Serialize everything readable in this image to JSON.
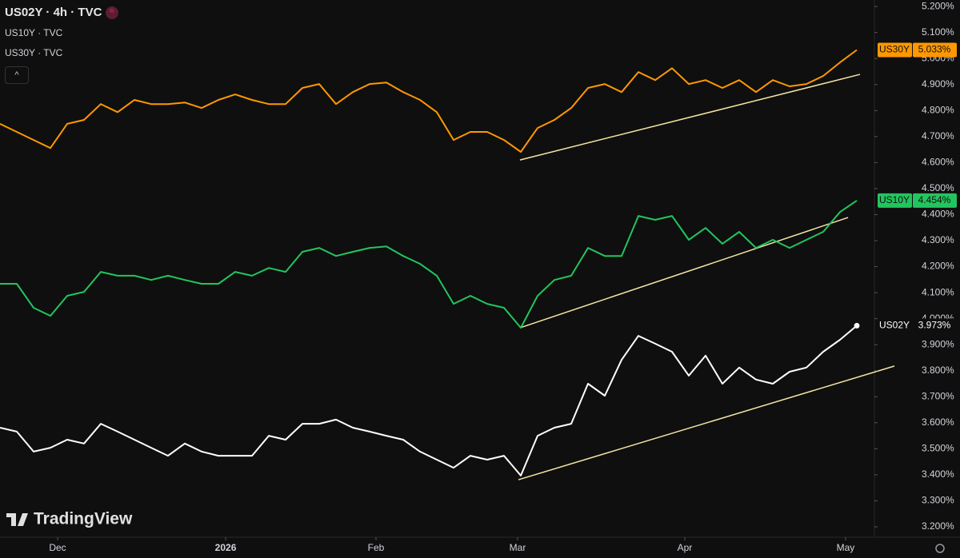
{
  "chart_data": {
    "type": "line",
    "header": {
      "main": "US02Y · 4h · TVC",
      "second": "US10Y · TVC",
      "third": "US30Y · TVC"
    },
    "brand": "TradingView",
    "xlim": [
      0,
      52
    ],
    "ylim": [
      3.16,
      5.225
    ],
    "xticks": [
      {
        "value": 3.43,
        "label": "Dec"
      },
      {
        "value": 13.43,
        "label": "2026"
      },
      {
        "value": 22.38,
        "label": "Feb"
      },
      {
        "value": 30.81,
        "label": "Mar"
      },
      {
        "value": 40.76,
        "label": "Apr"
      },
      {
        "value": 50.33,
        "label": "May"
      }
    ],
    "yticks": [
      {
        "value": 3.2,
        "label": "3.200%"
      },
      {
        "value": 3.3,
        "label": "3.300%"
      },
      {
        "value": 3.4,
        "label": "3.400%"
      },
      {
        "value": 3.5,
        "label": "3.500%"
      },
      {
        "value": 3.6,
        "label": "3.600%"
      },
      {
        "value": 3.7,
        "label": "3.700%"
      },
      {
        "value": 3.8,
        "label": "3.800%"
      },
      {
        "value": 3.9,
        "label": "3.900%"
      },
      {
        "value": 4.0,
        "label": "4.000%"
      },
      {
        "value": 4.1,
        "label": "4.100%"
      },
      {
        "value": 4.2,
        "label": "4.200%"
      },
      {
        "value": 4.3,
        "label": "4.300%"
      },
      {
        "value": 4.4,
        "label": "4.400%"
      },
      {
        "value": 4.5,
        "label": "4.500%"
      },
      {
        "value": 4.6,
        "label": "4.600%"
      },
      {
        "value": 4.7,
        "label": "4.700%"
      },
      {
        "value": 4.8,
        "label": "4.800%"
      },
      {
        "value": 4.9,
        "label": "4.900%"
      },
      {
        "value": 5.0,
        "label": "5.000%"
      },
      {
        "value": 5.1,
        "label": "5.100%"
      },
      {
        "value": 5.2,
        "label": "5.200%"
      }
    ],
    "series": [
      {
        "name": "US30Y",
        "color": "#ff9800",
        "last": {
          "value": 5.033,
          "label": "5.033%"
        },
        "values": [
          4.749,
          4.718,
          4.687,
          4.656,
          4.749,
          4.764,
          4.825,
          4.794,
          4.841,
          4.825,
          4.825,
          4.831,
          4.81,
          4.841,
          4.862,
          4.841,
          4.825,
          4.825,
          4.887,
          4.902,
          4.825,
          4.871,
          4.902,
          4.908,
          4.871,
          4.841,
          4.794,
          4.687,
          4.718,
          4.718,
          4.687,
          4.641,
          4.733,
          4.764,
          4.81,
          4.887,
          4.902,
          4.871,
          4.948,
          4.917,
          4.963,
          4.902,
          4.917,
          4.887,
          4.917,
          4.871,
          4.917,
          4.893,
          4.902,
          4.933,
          4.985,
          5.033
        ],
        "trend": {
          "x": [
            30.95,
            51.19
          ],
          "values": [
            4.61,
            4.939
          ]
        }
      },
      {
        "name": "US10Y",
        "color": "#22c55e",
        "last": {
          "value": 4.454,
          "label": "4.454%"
        },
        "values": [
          4.134,
          4.134,
          4.042,
          4.011,
          4.088,
          4.103,
          4.18,
          4.165,
          4.165,
          4.149,
          4.165,
          4.149,
          4.134,
          4.134,
          4.18,
          4.165,
          4.195,
          4.18,
          4.257,
          4.272,
          4.241,
          4.257,
          4.272,
          4.278,
          4.241,
          4.211,
          4.165,
          4.057,
          4.088,
          4.057,
          4.042,
          3.965,
          4.088,
          4.149,
          4.165,
          4.272,
          4.241,
          4.241,
          4.395,
          4.38,
          4.395,
          4.303,
          4.349,
          4.288,
          4.334,
          4.272,
          4.303,
          4.272,
          4.303,
          4.334,
          4.41,
          4.454
        ],
        "trend": {
          "x": [
            30.95,
            50.48
          ],
          "values": [
            3.965,
            4.389
          ]
        }
      },
      {
        "name": "US02Y",
        "color": "#ffffff",
        "last": {
          "value": 3.973,
          "label": "3.973%"
        },
        "values": [
          3.581,
          3.566,
          3.489,
          3.504,
          3.535,
          3.52,
          3.596,
          3.566,
          3.535,
          3.504,
          3.473,
          3.52,
          3.489,
          3.473,
          3.473,
          3.473,
          3.55,
          3.535,
          3.596,
          3.596,
          3.612,
          3.581,
          3.566,
          3.55,
          3.535,
          3.489,
          3.458,
          3.427,
          3.473,
          3.458,
          3.473,
          3.397,
          3.55,
          3.581,
          3.596,
          3.75,
          3.704,
          3.842,
          3.934,
          3.904,
          3.873,
          3.781,
          3.858,
          3.75,
          3.812,
          3.766,
          3.75,
          3.796,
          3.812,
          3.873,
          3.919,
          3.973
        ],
        "trend": {
          "x": [
            30.86,
            53.24
          ],
          "values": [
            3.381,
            3.818
          ]
        }
      }
    ],
    "trend_color": "#f5e6a3"
  }
}
